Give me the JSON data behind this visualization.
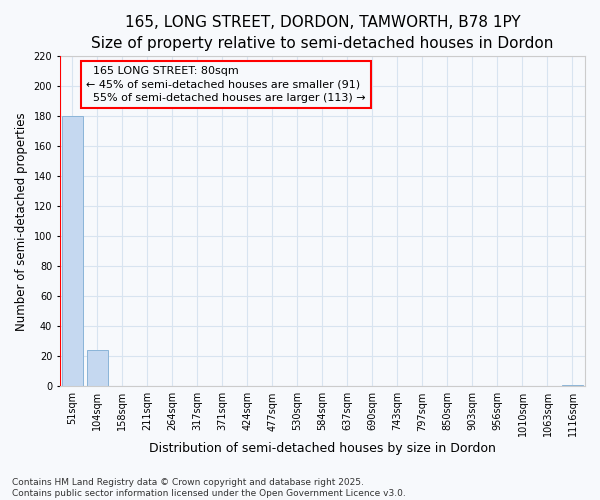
{
  "title": "165, LONG STREET, DORDON, TAMWORTH, B78 1PY",
  "subtitle": "Size of property relative to semi-detached houses in Dordon",
  "xlabel": "Distribution of semi-detached houses by size in Dordon",
  "ylabel": "Number of semi-detached properties",
  "footer": "Contains HM Land Registry data © Crown copyright and database right 2025.\nContains public sector information licensed under the Open Government Licence v3.0.",
  "bins": [
    "51sqm",
    "104sqm",
    "158sqm",
    "211sqm",
    "264sqm",
    "317sqm",
    "371sqm",
    "424sqm",
    "477sqm",
    "530sqm",
    "584sqm",
    "637sqm",
    "690sqm",
    "743sqm",
    "797sqm",
    "850sqm",
    "903sqm",
    "956sqm",
    "1010sqm",
    "1063sqm",
    "1116sqm"
  ],
  "values": [
    180,
    24,
    0,
    0,
    0,
    0,
    0,
    0,
    0,
    0,
    0,
    0,
    0,
    0,
    0,
    0,
    0,
    0,
    0,
    0,
    1
  ],
  "bar_color": "#c5d8f0",
  "bar_edge_color": "#8ab4d8",
  "ylim": [
    0,
    220
  ],
  "yticks": [
    0,
    20,
    40,
    60,
    80,
    100,
    120,
    140,
    160,
    180,
    200,
    220
  ],
  "property_label": "165 LONG STREET: 80sqm",
  "smaller_pct": "45%",
  "smaller_count": 91,
  "larger_pct": "55%",
  "larger_count": 113,
  "red_line_x": -0.5,
  "background_color": "#f7f9fc",
  "grid_color": "#d8e4f0",
  "title_fontsize": 11,
  "subtitle_fontsize": 9,
  "annotation_fontsize": 8,
  "ylabel_fontsize": 8.5,
  "xlabel_fontsize": 9,
  "tick_fontsize": 7,
  "footer_fontsize": 6.5
}
